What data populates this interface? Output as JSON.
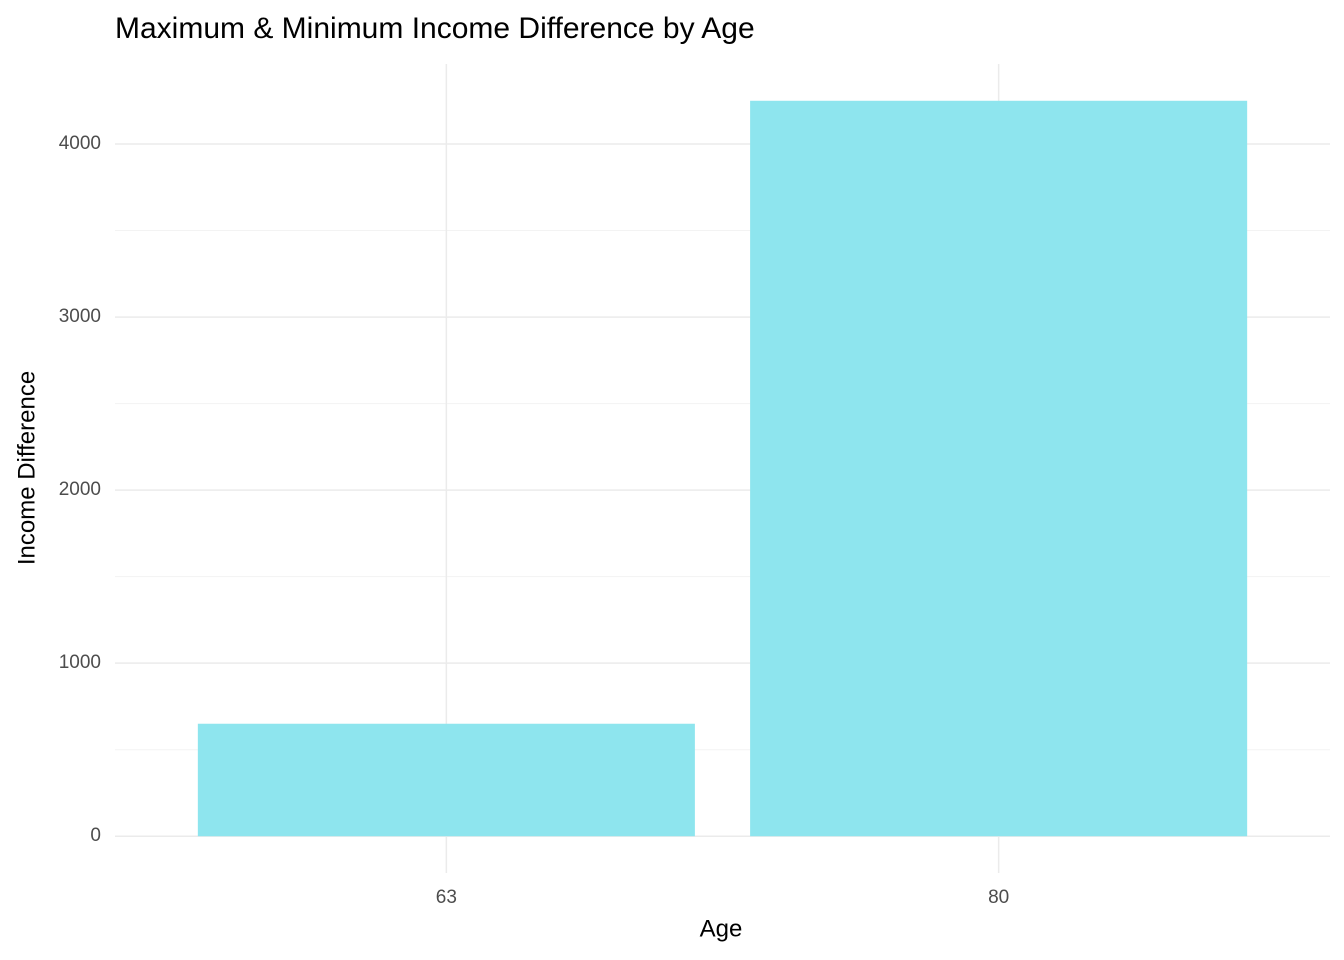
{
  "chart_data": {
    "type": "bar",
    "title": "Maximum & Minimum Income Difference by Age",
    "x_label": "Age",
    "y_label": "Income Difference",
    "categories": [
      "63",
      "80"
    ],
    "values": [
      650,
      4250
    ],
    "color": "#8ee5ee",
    "ylim": [
      -212.5,
      4462.5
    ],
    "yticks": [
      0,
      1000,
      2000,
      3000,
      4000
    ],
    "minor_yticks": [
      500,
      1500,
      2500,
      3500
    ],
    "grid": true
  }
}
